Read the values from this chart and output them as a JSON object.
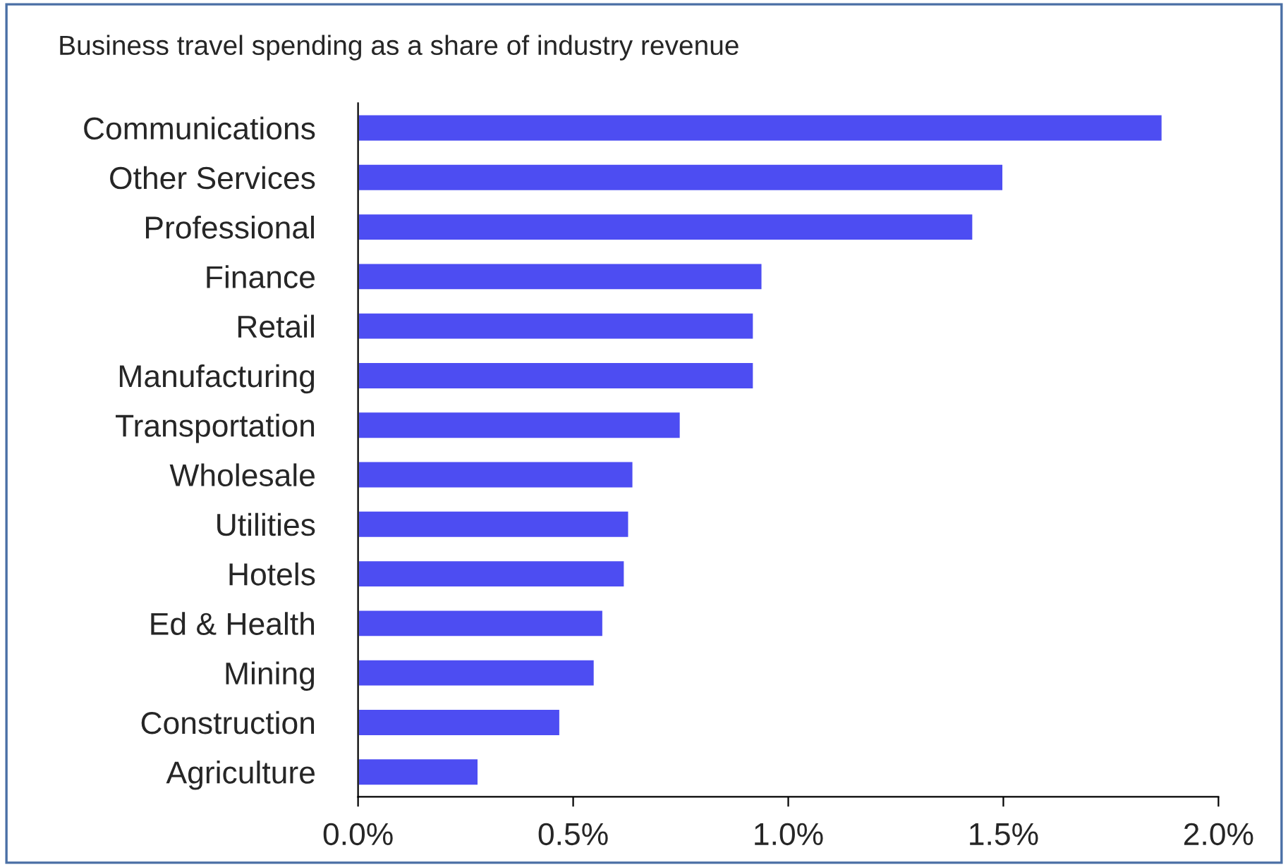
{
  "chart_data": {
    "type": "bar",
    "orientation": "horizontal",
    "title": "Business travel spending as a share of industry revenue",
    "categories": [
      "Communications",
      "Other Services",
      "Professional",
      "Finance",
      "Retail",
      "Manufacturing",
      "Transportation",
      "Wholesale",
      "Utilities",
      "Hotels",
      "Ed & Health",
      "Mining",
      "Construction",
      "Agriculture"
    ],
    "values": [
      1.87,
      1.5,
      1.43,
      0.94,
      0.92,
      0.92,
      0.75,
      0.64,
      0.63,
      0.62,
      0.57,
      0.55,
      0.47,
      0.28
    ],
    "color": "#4d4df2",
    "xlim": [
      0,
      2.0
    ],
    "xticks": [
      {
        "value": 0,
        "label": "0.0%"
      },
      {
        "value": 0.5,
        "label": "0.5%"
      },
      {
        "value": 1.0,
        "label": "1.0%"
      },
      {
        "value": 1.5,
        "label": "1.5%"
      },
      {
        "value": 2.0,
        "label": "2.0%"
      }
    ],
    "grid": false,
    "legend": false
  }
}
